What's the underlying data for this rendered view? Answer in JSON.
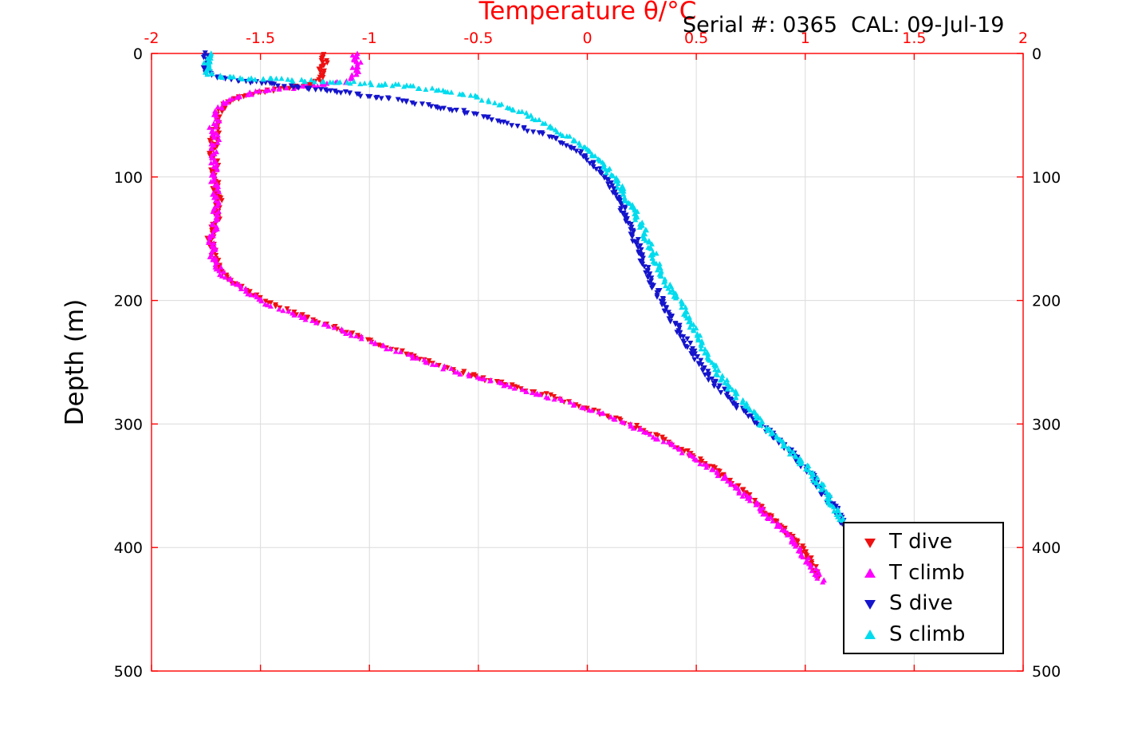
{
  "header": {
    "title": "Temperature θ/°C",
    "serial_text": "Serial #: 0365  CAL: 09-Jul-19"
  },
  "chart_data": {
    "type": "scatter",
    "title": "Temperature θ/°C",
    "annotation": "Serial #: 0365  CAL: 09-Jul-19",
    "xlabel": "Temperature θ/°C",
    "ylabel": "Depth (m)",
    "xlim": [
      -2,
      2
    ],
    "ylim": [
      0,
      500
    ],
    "y_inverted": true,
    "grid": true,
    "legend_position": "lower right",
    "axis_color": "#ff0000",
    "grid_color": "#dcdcdc",
    "x_tick_color": "#ff0000",
    "y_tick_color": "#000000",
    "x_ticks": [
      -2,
      -1.5,
      -1,
      -0.5,
      0,
      0.5,
      1,
      1.5,
      2
    ],
    "y_ticks": [
      0,
      100,
      200,
      300,
      400,
      500
    ],
    "series": [
      {
        "name": "T dive",
        "color": "#ee1111",
        "marker": "down",
        "points": [
          [
            0,
            -1.21
          ],
          [
            4,
            -1.22
          ],
          [
            8,
            -1.2
          ],
          [
            12,
            -1.22
          ],
          [
            16,
            -1.21
          ],
          [
            20,
            -1.22
          ],
          [
            24,
            -1.24
          ],
          [
            26,
            -1.3
          ],
          [
            28,
            -1.38
          ],
          [
            30,
            -1.46
          ],
          [
            32,
            -1.52
          ],
          [
            34,
            -1.57
          ],
          [
            37,
            -1.62
          ],
          [
            40,
            -1.65
          ],
          [
            45,
            -1.68
          ],
          [
            50,
            -1.7
          ],
          [
            55,
            -1.69
          ],
          [
            60,
            -1.71
          ],
          [
            65,
            -1.7
          ],
          [
            70,
            -1.72
          ],
          [
            75,
            -1.71
          ],
          [
            80,
            -1.73
          ],
          [
            85,
            -1.71
          ],
          [
            90,
            -1.7
          ],
          [
            95,
            -1.72
          ],
          [
            100,
            -1.71
          ],
          [
            105,
            -1.7
          ],
          [
            110,
            -1.71
          ],
          [
            115,
            -1.7
          ],
          [
            120,
            -1.69
          ],
          [
            125,
            -1.7
          ],
          [
            130,
            -1.71
          ],
          [
            135,
            -1.7
          ],
          [
            140,
            -1.72
          ],
          [
            145,
            -1.71
          ],
          [
            150,
            -1.73
          ],
          [
            155,
            -1.72
          ],
          [
            160,
            -1.72
          ],
          [
            165,
            -1.71
          ],
          [
            170,
            -1.7
          ],
          [
            175,
            -1.68
          ],
          [
            180,
            -1.66
          ],
          [
            185,
            -1.62
          ],
          [
            190,
            -1.58
          ],
          [
            195,
            -1.54
          ],
          [
            200,
            -1.49
          ],
          [
            205,
            -1.42
          ],
          [
            210,
            -1.35
          ],
          [
            215,
            -1.27
          ],
          [
            220,
            -1.19
          ],
          [
            225,
            -1.1
          ],
          [
            230,
            -1.03
          ],
          [
            235,
            -0.96
          ],
          [
            240,
            -0.88
          ],
          [
            245,
            -0.8
          ],
          [
            250,
            -0.72
          ],
          [
            255,
            -0.64
          ],
          [
            260,
            -0.54
          ],
          [
            265,
            -0.44
          ],
          [
            270,
            -0.33
          ],
          [
            275,
            -0.22
          ],
          [
            280,
            -0.12
          ],
          [
            285,
            -0.04
          ],
          [
            290,
            0.05
          ],
          [
            295,
            0.13
          ],
          [
            300,
            0.2
          ],
          [
            310,
            0.32
          ],
          [
            320,
            0.43
          ],
          [
            330,
            0.52
          ],
          [
            340,
            0.61
          ],
          [
            350,
            0.68
          ],
          [
            360,
            0.75
          ],
          [
            370,
            0.81
          ],
          [
            380,
            0.87
          ],
          [
            390,
            0.93
          ],
          [
            400,
            0.98
          ],
          [
            410,
            1.02
          ],
          [
            420,
            1.05
          ],
          [
            425,
            1.06
          ]
        ]
      },
      {
        "name": "T climb",
        "color": "#ff00ff",
        "marker": "up",
        "points": [
          [
            0,
            -1.06
          ],
          [
            4,
            -1.07
          ],
          [
            8,
            -1.05
          ],
          [
            12,
            -1.07
          ],
          [
            16,
            -1.06
          ],
          [
            20,
            -1.08
          ],
          [
            23,
            -1.12
          ],
          [
            25,
            -1.2
          ],
          [
            27,
            -1.32
          ],
          [
            29,
            -1.44
          ],
          [
            31,
            -1.52
          ],
          [
            34,
            -1.59
          ],
          [
            37,
            -1.64
          ],
          [
            40,
            -1.66
          ],
          [
            45,
            -1.69
          ],
          [
            50,
            -1.71
          ],
          [
            55,
            -1.7
          ],
          [
            60,
            -1.72
          ],
          [
            65,
            -1.71
          ],
          [
            70,
            -1.7
          ],
          [
            75,
            -1.72
          ],
          [
            80,
            -1.71
          ],
          [
            85,
            -1.72
          ],
          [
            90,
            -1.71
          ],
          [
            95,
            -1.7
          ],
          [
            100,
            -1.72
          ],
          [
            105,
            -1.71
          ],
          [
            110,
            -1.7
          ],
          [
            115,
            -1.71
          ],
          [
            120,
            -1.7
          ],
          [
            125,
            -1.71
          ],
          [
            130,
            -1.7
          ],
          [
            135,
            -1.71
          ],
          [
            140,
            -1.71
          ],
          [
            145,
            -1.72
          ],
          [
            150,
            -1.72
          ],
          [
            155,
            -1.73
          ],
          [
            160,
            -1.71
          ],
          [
            165,
            -1.72
          ],
          [
            170,
            -1.71
          ],
          [
            175,
            -1.69
          ],
          [
            180,
            -1.67
          ],
          [
            185,
            -1.63
          ],
          [
            190,
            -1.59
          ],
          [
            195,
            -1.55
          ],
          [
            200,
            -1.5
          ],
          [
            205,
            -1.44
          ],
          [
            210,
            -1.36
          ],
          [
            215,
            -1.28
          ],
          [
            220,
            -1.2
          ],
          [
            225,
            -1.12
          ],
          [
            230,
            -1.04
          ],
          [
            235,
            -0.97
          ],
          [
            240,
            -0.89
          ],
          [
            245,
            -0.81
          ],
          [
            250,
            -0.73
          ],
          [
            255,
            -0.65
          ],
          [
            260,
            -0.55
          ],
          [
            265,
            -0.45
          ],
          [
            270,
            -0.35
          ],
          [
            275,
            -0.24
          ],
          [
            280,
            -0.13
          ],
          [
            285,
            -0.05
          ],
          [
            290,
            0.04
          ],
          [
            295,
            0.12
          ],
          [
            300,
            0.19
          ],
          [
            310,
            0.31
          ],
          [
            320,
            0.42
          ],
          [
            330,
            0.51
          ],
          [
            340,
            0.6
          ],
          [
            350,
            0.67
          ],
          [
            360,
            0.74
          ],
          [
            370,
            0.8
          ],
          [
            380,
            0.86
          ],
          [
            390,
            0.92
          ],
          [
            400,
            0.97
          ],
          [
            410,
            1.01
          ],
          [
            420,
            1.05
          ],
          [
            428,
            1.08
          ]
        ]
      },
      {
        "name": "S dive",
        "color": "#1515cc",
        "marker": "down",
        "points": [
          [
            0,
            -1.74
          ],
          [
            4,
            -1.75
          ],
          [
            8,
            -1.74
          ],
          [
            12,
            -1.75
          ],
          [
            16,
            -1.74
          ],
          [
            19,
            -1.71
          ],
          [
            21,
            -1.64
          ],
          [
            23,
            -1.55
          ],
          [
            25,
            -1.45
          ],
          [
            27,
            -1.35
          ],
          [
            29,
            -1.25
          ],
          [
            31,
            -1.15
          ],
          [
            33,
            -1.06
          ],
          [
            35,
            -0.98
          ],
          [
            38,
            -0.88
          ],
          [
            41,
            -0.78
          ],
          [
            44,
            -0.68
          ],
          [
            47,
            -0.58
          ],
          [
            50,
            -0.5
          ],
          [
            54,
            -0.42
          ],
          [
            58,
            -0.34
          ],
          [
            62,
            -0.27
          ],
          [
            66,
            -0.2
          ],
          [
            70,
            -0.14
          ],
          [
            75,
            -0.09
          ],
          [
            80,
            -0.04
          ],
          [
            85,
            0.0
          ],
          [
            90,
            0.03
          ],
          [
            95,
            0.06
          ],
          [
            100,
            0.08
          ],
          [
            110,
            0.12
          ],
          [
            120,
            0.15
          ],
          [
            130,
            0.17
          ],
          [
            140,
            0.2
          ],
          [
            150,
            0.22
          ],
          [
            160,
            0.24
          ],
          [
            170,
            0.26
          ],
          [
            180,
            0.28
          ],
          [
            190,
            0.31
          ],
          [
            200,
            0.34
          ],
          [
            210,
            0.37
          ],
          [
            220,
            0.41
          ],
          [
            230,
            0.44
          ],
          [
            240,
            0.48
          ],
          [
            250,
            0.51
          ],
          [
            260,
            0.55
          ],
          [
            270,
            0.6
          ],
          [
            280,
            0.66
          ],
          [
            290,
            0.72
          ],
          [
            300,
            0.79
          ],
          [
            310,
            0.86
          ],
          [
            320,
            0.92
          ],
          [
            330,
            0.97
          ],
          [
            340,
            1.02
          ],
          [
            350,
            1.06
          ],
          [
            360,
            1.1
          ],
          [
            370,
            1.14
          ],
          [
            376,
            1.16
          ],
          [
            381,
            1.17
          ]
        ]
      },
      {
        "name": "S climb",
        "color": "#00dcee",
        "marker": "up",
        "points": [
          [
            0,
            -1.73
          ],
          [
            4,
            -1.74
          ],
          [
            8,
            -1.75
          ],
          [
            12,
            -1.74
          ],
          [
            15,
            -1.76
          ],
          [
            17,
            -1.73
          ],
          [
            19,
            -1.65
          ],
          [
            20,
            -1.55
          ],
          [
            21,
            -1.42
          ],
          [
            22,
            -1.28
          ],
          [
            23,
            -1.15
          ],
          [
            24,
            -1.03
          ],
          [
            25,
            -0.93
          ],
          [
            26,
            -0.85
          ],
          [
            28,
            -0.76
          ],
          [
            30,
            -0.68
          ],
          [
            32,
            -0.6
          ],
          [
            34,
            -0.54
          ],
          [
            37,
            -0.48
          ],
          [
            40,
            -0.42
          ],
          [
            44,
            -0.36
          ],
          [
            48,
            -0.3
          ],
          [
            52,
            -0.25
          ],
          [
            57,
            -0.19
          ],
          [
            62,
            -0.14
          ],
          [
            68,
            -0.08
          ],
          [
            74,
            -0.03
          ],
          [
            80,
            0.01
          ],
          [
            87,
            0.05
          ],
          [
            94,
            0.09
          ],
          [
            102,
            0.13
          ],
          [
            110,
            0.16
          ],
          [
            120,
            0.19
          ],
          [
            130,
            0.22
          ],
          [
            140,
            0.25
          ],
          [
            150,
            0.27
          ],
          [
            160,
            0.3
          ],
          [
            170,
            0.32
          ],
          [
            180,
            0.35
          ],
          [
            190,
            0.38
          ],
          [
            200,
            0.42
          ],
          [
            210,
            0.45
          ],
          [
            220,
            0.48
          ],
          [
            230,
            0.51
          ],
          [
            240,
            0.54
          ],
          [
            250,
            0.57
          ],
          [
            260,
            0.61
          ],
          [
            270,
            0.65
          ],
          [
            280,
            0.7
          ],
          [
            290,
            0.75
          ],
          [
            300,
            0.8
          ],
          [
            310,
            0.86
          ],
          [
            320,
            0.92
          ],
          [
            330,
            0.98
          ],
          [
            340,
            1.03
          ],
          [
            350,
            1.07
          ],
          [
            360,
            1.11
          ],
          [
            370,
            1.14
          ],
          [
            378,
            1.17
          ]
        ]
      }
    ]
  }
}
